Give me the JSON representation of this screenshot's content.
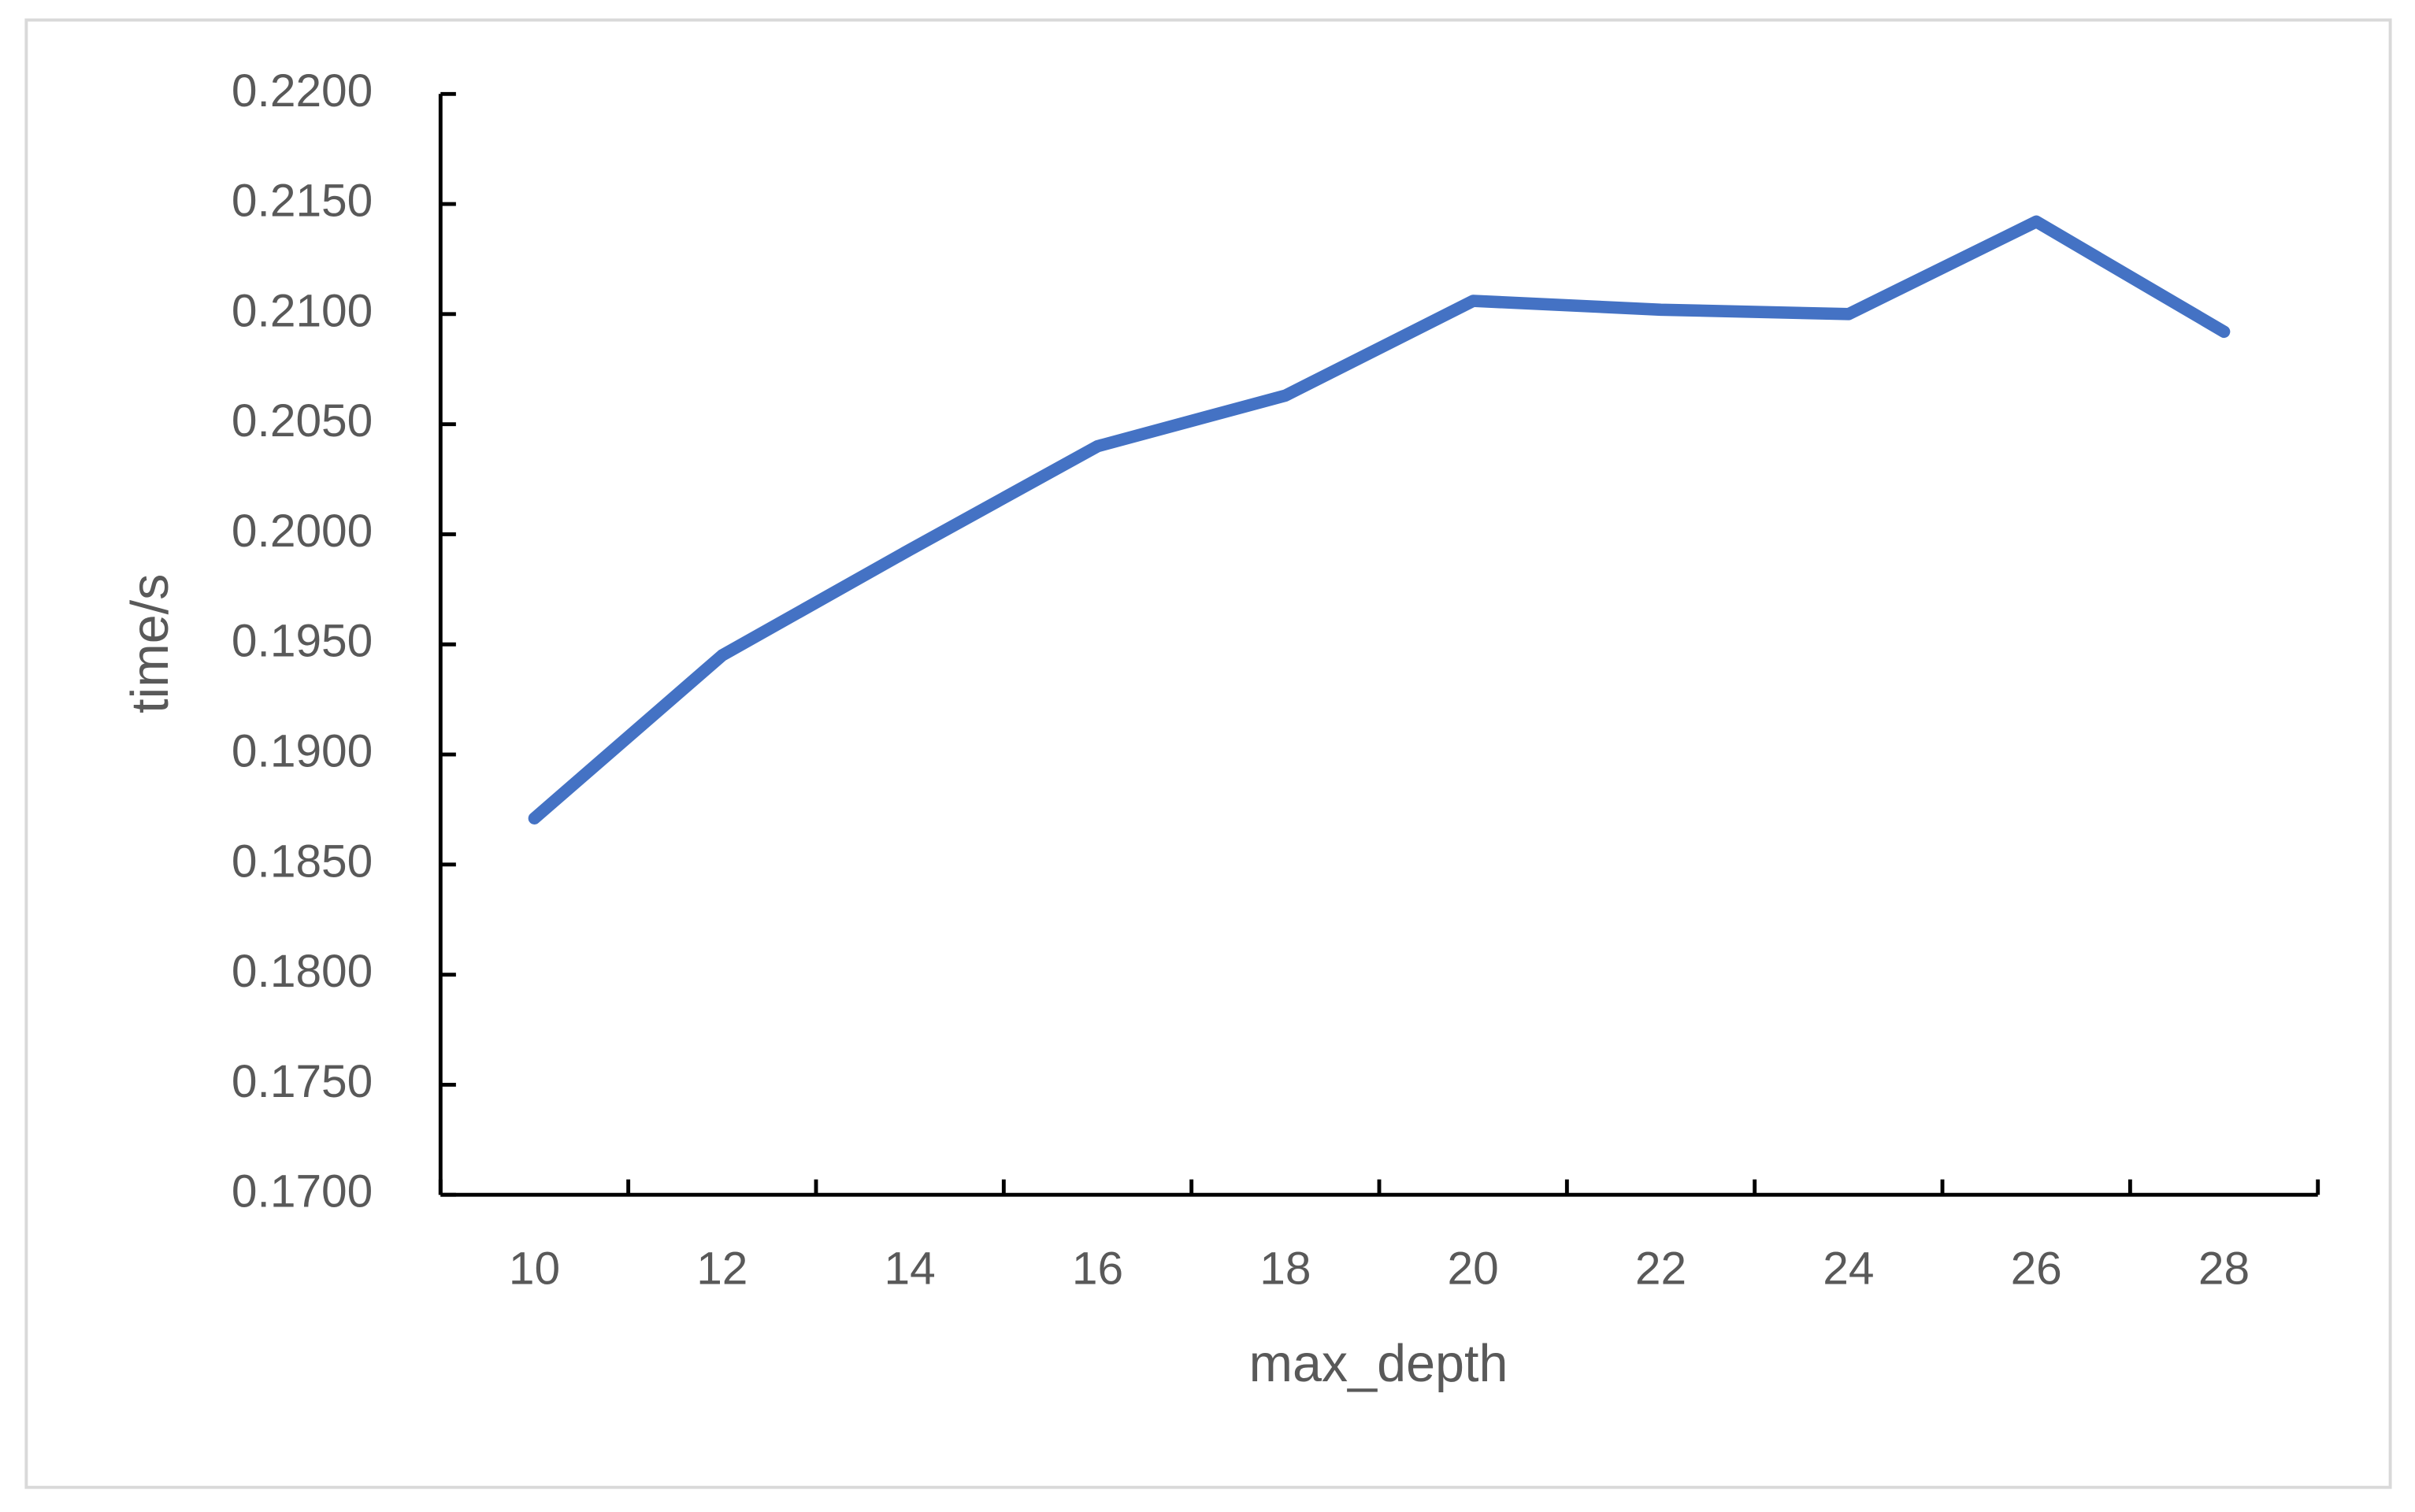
{
  "chart_data": {
    "type": "line",
    "x_label": "max_depth",
    "y_label": "time/s",
    "categories": [
      10,
      12,
      14,
      16,
      18,
      20,
      22,
      24,
      26,
      28
    ],
    "values": [
      0.1871,
      0.1945,
      0.1993,
      0.204,
      0.2063,
      0.2106,
      0.2102,
      0.21,
      0.2142,
      0.2092
    ],
    "color": "#4472c4",
    "ylim": [
      0.17,
      0.22
    ],
    "yticks": [
      {
        "value": 0.17,
        "label": "0.1700"
      },
      {
        "value": 0.175,
        "label": "0.1750"
      },
      {
        "value": 0.18,
        "label": "0.1800"
      },
      {
        "value": 0.185,
        "label": "0.1850"
      },
      {
        "value": 0.19,
        "label": "0.1900"
      },
      {
        "value": 0.195,
        "label": "0.1950"
      },
      {
        "value": 0.2,
        "label": "0.2000"
      },
      {
        "value": 0.205,
        "label": "0.2050"
      },
      {
        "value": 0.21,
        "label": "0.2100"
      },
      {
        "value": 0.215,
        "label": "0.2150"
      },
      {
        "value": 0.22,
        "label": "0.2200"
      }
    ],
    "grid": false
  }
}
